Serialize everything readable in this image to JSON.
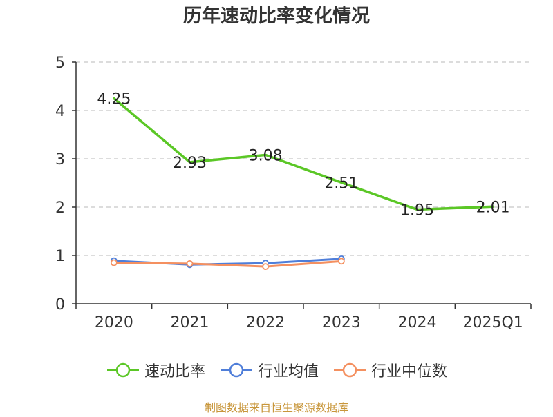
{
  "chart_data": {
    "type": "line",
    "title": "历年速动比率变化情况",
    "categories": [
      "2020",
      "2021",
      "2022",
      "2023",
      "2024",
      "2025Q1"
    ],
    "ylim": [
      0,
      5
    ],
    "yticks": [
      0,
      1,
      2,
      3,
      4,
      5
    ],
    "grid": true,
    "legend_position": "bottom",
    "series": [
      {
        "name": "速动比率",
        "color": "#5bc726",
        "values": [
          4.25,
          2.93,
          3.08,
          2.51,
          1.95,
          2.01
        ],
        "labels": [
          "4.25",
          "2.93",
          "3.08",
          "2.51",
          "1.95",
          "2.01"
        ],
        "show_labels": true,
        "show_markers": false
      },
      {
        "name": "行业均值",
        "color": "#4f7ed9",
        "values": [
          0.89,
          0.81,
          0.84,
          0.93,
          null,
          null
        ],
        "show_labels": false,
        "show_markers": true
      },
      {
        "name": "行业中位数",
        "color": "#f49060",
        "values": [
          0.85,
          0.83,
          0.77,
          0.88,
          null,
          null
        ],
        "show_labels": false,
        "show_markers": true
      }
    ]
  },
  "source_note": "制图数据来自恒生聚源数据库"
}
